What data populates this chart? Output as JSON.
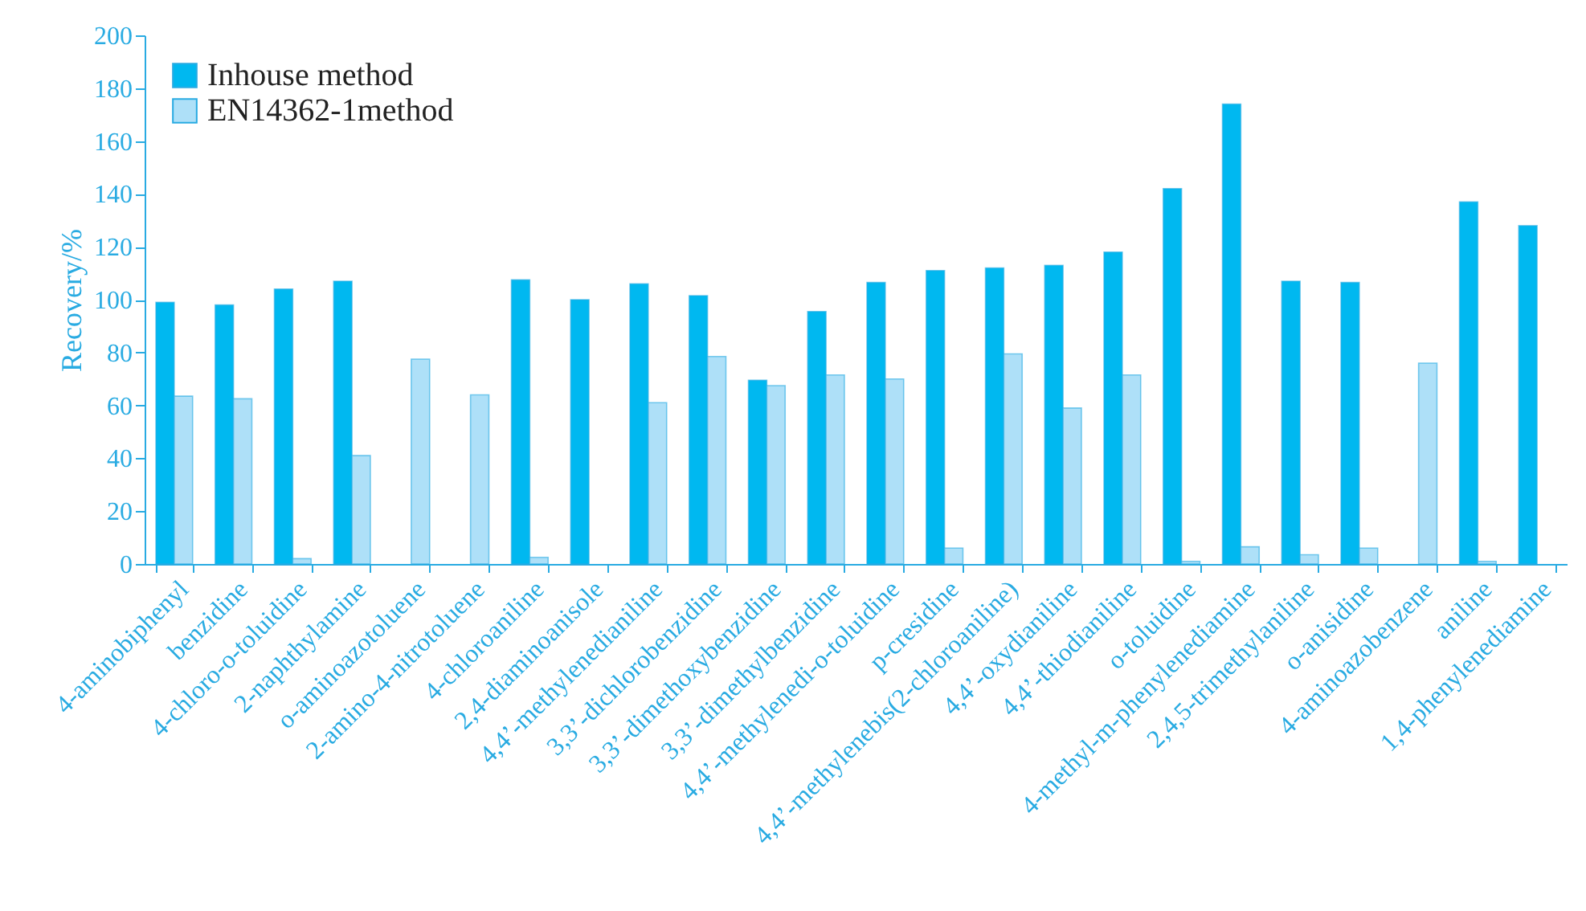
{
  "chart_data": {
    "type": "bar",
    "ylabel": "Recovery/%",
    "categories": [
      "4-aminobiphenyl",
      "benzidine",
      "4-chloro-o-toluidine",
      "2-naphthylamine",
      "o-aminoazotoluene",
      "2-amino-4-nitrotoluene",
      "4-chloroaniline",
      "2,4-diaminoanisole",
      "4,4’-methylenedianiline",
      "3,3’-dichlorobenzidine",
      "3,3’-dimethoxybenzidine",
      "3,3’-dimethylbenzidine",
      "4,4’-methylenedi-o-toluidine",
      "p-cresidine",
      "4,4’-methylenebis(2-chloroaniline)",
      "4,4’-oxydianiline",
      "4,4’-thiodianiline",
      "o-toluidine",
      "4-methyl-m-phenylenediamine",
      "2,4,5-trimethylaniline",
      "o-anisidine",
      "4-aminoazobenzene",
      "aniline",
      "1,4-phenylenediamine"
    ],
    "series": [
      {
        "name": "Inhouse method",
        "color": "#00b8f0",
        "values": [
          99,
          98,
          104,
          107,
          null,
          null,
          107.5,
          100,
          106,
          101.5,
          69.5,
          95.5,
          106.5,
          111,
          112,
          113,
          118,
          142,
          174,
          107,
          106.5,
          null,
          137,
          128
        ]
      },
      {
        "name": "EN14362-1method",
        "color": "#aee0f8",
        "values": [
          63.5,
          62.5,
          2,
          41,
          77.5,
          64,
          2.5,
          null,
          61,
          78.5,
          67.5,
          71.5,
          70,
          6,
          79.5,
          59,
          71.5,
          1,
          6.5,
          3.5,
          6,
          76,
          1,
          null
        ]
      }
    ],
    "ylim": [
      0,
      200
    ],
    "yticks": [
      0,
      20,
      40,
      60,
      80,
      100,
      120,
      140,
      160,
      180,
      200
    ],
    "grid": false,
    "legend": "top left"
  }
}
